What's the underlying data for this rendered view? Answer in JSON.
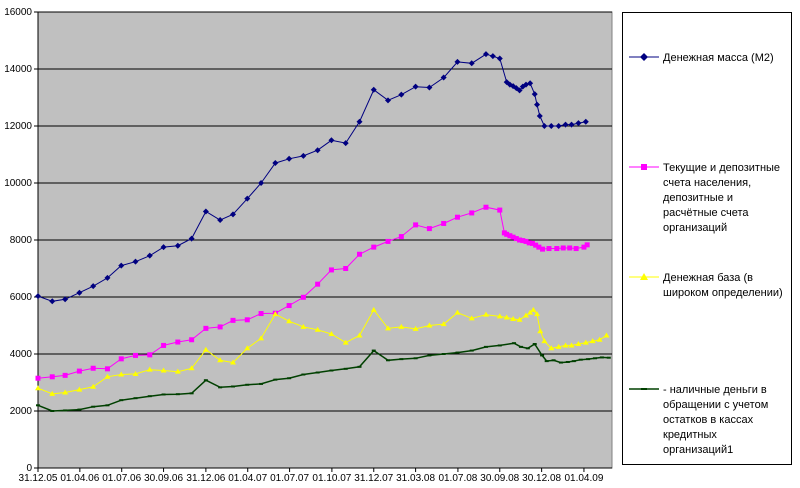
{
  "chart_data": {
    "type": "line",
    "ylim": [
      0,
      16000
    ],
    "yticks": [
      0,
      2000,
      4000,
      6000,
      8000,
      10000,
      12000,
      14000,
      16000
    ],
    "ytick_labels": [
      "0",
      "2000",
      "4000",
      "6000",
      "8000",
      "10000",
      "12000",
      "14000",
      "16000"
    ],
    "xlim": [
      "2005-12-31",
      "2009-06-01"
    ],
    "xtick_labels": [
      "31.12.05",
      "01.04.06",
      "01.07.06",
      "30.09.06",
      "31.12.06",
      "01.04.07",
      "01.07.07",
      "01.10.07",
      "31.12.07",
      "31.03.08",
      "01.07.08",
      "30.09.08",
      "30.12.08",
      "01.04.09"
    ],
    "xtick_dates": [
      "2005-12-31",
      "2006-04-01",
      "2006-07-01",
      "2006-09-30",
      "2006-12-31",
      "2007-04-01",
      "2007-07-01",
      "2007-10-01",
      "2007-12-31",
      "2008-03-31",
      "2008-07-01",
      "2008-09-30",
      "2008-12-30",
      "2009-04-01"
    ],
    "grid": "horizontal",
    "plot_background": "#c0c0c0",
    "legend_position": "right",
    "series": [
      {
        "name": "Денежная масса (М2)",
        "color": "#000080",
        "marker": "diamond",
        "points": [
          [
            "2005-12-31",
            6030
          ],
          [
            "2006-01-31",
            5850
          ],
          [
            "2006-02-28",
            5920
          ],
          [
            "2006-03-31",
            6150
          ],
          [
            "2006-04-30",
            6380
          ],
          [
            "2006-05-31",
            6670
          ],
          [
            "2006-06-30",
            7100
          ],
          [
            "2006-07-31",
            7240
          ],
          [
            "2006-08-31",
            7450
          ],
          [
            "2006-09-30",
            7750
          ],
          [
            "2006-10-31",
            7800
          ],
          [
            "2006-11-30",
            8050
          ],
          [
            "2006-12-31",
            9000
          ],
          [
            "2007-01-31",
            8700
          ],
          [
            "2007-02-28",
            8900
          ],
          [
            "2007-03-31",
            9450
          ],
          [
            "2007-04-30",
            10000
          ],
          [
            "2007-05-31",
            10700
          ],
          [
            "2007-06-30",
            10850
          ],
          [
            "2007-07-31",
            10950
          ],
          [
            "2007-08-31",
            11150
          ],
          [
            "2007-09-30",
            11500
          ],
          [
            "2007-10-31",
            11400
          ],
          [
            "2007-11-30",
            12150
          ],
          [
            "2007-12-31",
            13270
          ],
          [
            "2008-01-31",
            12900
          ],
          [
            "2008-02-29",
            13100
          ],
          [
            "2008-03-31",
            13380
          ],
          [
            "2008-04-30",
            13350
          ],
          [
            "2008-05-31",
            13700
          ],
          [
            "2008-06-30",
            14250
          ],
          [
            "2008-07-31",
            14200
          ],
          [
            "2008-08-31",
            14520
          ],
          [
            "2008-09-15",
            14450
          ],
          [
            "2008-09-30",
            14370
          ],
          [
            "2008-10-15",
            13540
          ],
          [
            "2008-10-22",
            13450
          ],
          [
            "2008-10-29",
            13400
          ],
          [
            "2008-11-05",
            13330
          ],
          [
            "2008-11-12",
            13250
          ],
          [
            "2008-11-19",
            13380
          ],
          [
            "2008-11-26",
            13450
          ],
          [
            "2008-12-05",
            13500
          ],
          [
            "2008-12-15",
            13120
          ],
          [
            "2008-12-20",
            12750
          ],
          [
            "2008-12-26",
            12350
          ],
          [
            "2009-01-05",
            12000
          ],
          [
            "2009-01-20",
            12000
          ],
          [
            "2009-02-05",
            12000
          ],
          [
            "2009-02-20",
            12050
          ],
          [
            "2009-03-05",
            12050
          ],
          [
            "2009-03-20",
            12100
          ],
          [
            "2009-04-05",
            12150
          ]
        ]
      },
      {
        "name": "Текущие и депозитные счета населения, депозитные и расчётные счета организаций",
        "color": "#ff00ff",
        "marker": "square",
        "points": [
          [
            "2005-12-31",
            3150
          ],
          [
            "2006-01-31",
            3200
          ],
          [
            "2006-02-28",
            3250
          ],
          [
            "2006-03-31",
            3400
          ],
          [
            "2006-04-30",
            3500
          ],
          [
            "2006-05-31",
            3480
          ],
          [
            "2006-06-30",
            3830
          ],
          [
            "2006-07-31",
            3950
          ],
          [
            "2006-08-31",
            3970
          ],
          [
            "2006-09-30",
            4300
          ],
          [
            "2006-10-31",
            4420
          ],
          [
            "2006-11-30",
            4500
          ],
          [
            "2006-12-31",
            4900
          ],
          [
            "2007-01-31",
            4950
          ],
          [
            "2007-02-28",
            5180
          ],
          [
            "2007-03-31",
            5200
          ],
          [
            "2007-04-30",
            5420
          ],
          [
            "2007-05-31",
            5430
          ],
          [
            "2007-06-30",
            5700
          ],
          [
            "2007-07-31",
            5990
          ],
          [
            "2007-08-31",
            6450
          ],
          [
            "2007-09-30",
            6950
          ],
          [
            "2007-10-31",
            7000
          ],
          [
            "2007-11-30",
            7500
          ],
          [
            "2007-12-31",
            7750
          ],
          [
            "2008-01-31",
            7950
          ],
          [
            "2008-02-29",
            8120
          ],
          [
            "2008-03-31",
            8530
          ],
          [
            "2008-04-30",
            8400
          ],
          [
            "2008-05-31",
            8580
          ],
          [
            "2008-06-30",
            8800
          ],
          [
            "2008-07-31",
            8950
          ],
          [
            "2008-08-31",
            9150
          ],
          [
            "2008-09-30",
            9050
          ],
          [
            "2008-10-10",
            8250
          ],
          [
            "2008-10-15",
            8200
          ],
          [
            "2008-10-22",
            8150
          ],
          [
            "2008-10-29",
            8100
          ],
          [
            "2008-11-05",
            8050
          ],
          [
            "2008-11-12",
            8000
          ],
          [
            "2008-11-19",
            7980
          ],
          [
            "2008-11-26",
            7950
          ],
          [
            "2008-12-03",
            7900
          ],
          [
            "2008-12-10",
            7880
          ],
          [
            "2008-12-17",
            7820
          ],
          [
            "2008-12-24",
            7750
          ],
          [
            "2009-01-01",
            7680
          ],
          [
            "2009-01-15",
            7700
          ],
          [
            "2009-02-01",
            7700
          ],
          [
            "2009-02-15",
            7720
          ],
          [
            "2009-03-01",
            7720
          ],
          [
            "2009-03-15",
            7700
          ],
          [
            "2009-04-01",
            7750
          ],
          [
            "2009-04-08",
            7830
          ]
        ]
      },
      {
        "name": "Денежная база (в широком определении)",
        "color": "#ffff00",
        "marker": "triangle",
        "points": [
          [
            "2005-12-31",
            2800
          ],
          [
            "2006-01-31",
            2600
          ],
          [
            "2006-02-28",
            2650
          ],
          [
            "2006-03-31",
            2750
          ],
          [
            "2006-04-30",
            2850
          ],
          [
            "2006-05-31",
            3200
          ],
          [
            "2006-06-30",
            3280
          ],
          [
            "2006-07-31",
            3300
          ],
          [
            "2006-08-31",
            3450
          ],
          [
            "2006-09-30",
            3420
          ],
          [
            "2006-10-31",
            3380
          ],
          [
            "2006-11-30",
            3500
          ],
          [
            "2006-12-31",
            4150
          ],
          [
            "2007-01-31",
            3780
          ],
          [
            "2007-02-28",
            3700
          ],
          [
            "2007-03-31",
            4200
          ],
          [
            "2007-04-30",
            4550
          ],
          [
            "2007-05-31",
            5400
          ],
          [
            "2007-06-30",
            5150
          ],
          [
            "2007-07-31",
            4950
          ],
          [
            "2007-08-31",
            4850
          ],
          [
            "2007-09-30",
            4700
          ],
          [
            "2007-10-31",
            4400
          ],
          [
            "2007-11-30",
            4650
          ],
          [
            "2007-12-31",
            5550
          ],
          [
            "2008-01-31",
            4900
          ],
          [
            "2008-02-29",
            4950
          ],
          [
            "2008-03-31",
            4880
          ],
          [
            "2008-04-30",
            5000
          ],
          [
            "2008-05-31",
            5050
          ],
          [
            "2008-06-30",
            5450
          ],
          [
            "2008-07-31",
            5250
          ],
          [
            "2008-08-31",
            5380
          ],
          [
            "2008-09-30",
            5320
          ],
          [
            "2008-10-15",
            5280
          ],
          [
            "2008-10-29",
            5230
          ],
          [
            "2008-11-12",
            5200
          ],
          [
            "2008-11-26",
            5350
          ],
          [
            "2008-12-05",
            5450
          ],
          [
            "2008-12-12",
            5550
          ],
          [
            "2008-12-20",
            5400
          ],
          [
            "2008-12-27",
            4800
          ],
          [
            "2009-01-05",
            4450
          ],
          [
            "2009-01-20",
            4200
          ],
          [
            "2009-02-05",
            4250
          ],
          [
            "2009-02-20",
            4300
          ],
          [
            "2009-03-05",
            4300
          ],
          [
            "2009-03-20",
            4350
          ],
          [
            "2009-04-05",
            4400
          ],
          [
            "2009-04-20",
            4450
          ],
          [
            "2009-05-05",
            4500
          ],
          [
            "2009-05-20",
            4650
          ]
        ]
      },
      {
        "name": " -  наличные деньги в обращении с учетом остатков в кассах кредитных организаций1",
        "color": "#004000",
        "marker": "dash",
        "points": [
          [
            "2005-12-31",
            2200
          ],
          [
            "2006-01-31",
            2000
          ],
          [
            "2006-02-28",
            2020
          ],
          [
            "2006-03-31",
            2050
          ],
          [
            "2006-04-30",
            2150
          ],
          [
            "2006-05-31",
            2200
          ],
          [
            "2006-06-30",
            2380
          ],
          [
            "2006-07-31",
            2450
          ],
          [
            "2006-08-31",
            2520
          ],
          [
            "2006-09-30",
            2580
          ],
          [
            "2006-10-31",
            2590
          ],
          [
            "2006-11-30",
            2620
          ],
          [
            "2006-12-31",
            3080
          ],
          [
            "2007-01-31",
            2830
          ],
          [
            "2007-02-28",
            2860
          ],
          [
            "2007-03-31",
            2920
          ],
          [
            "2007-04-30",
            2950
          ],
          [
            "2007-05-31",
            3100
          ],
          [
            "2007-06-30",
            3150
          ],
          [
            "2007-07-31",
            3280
          ],
          [
            "2007-08-31",
            3350
          ],
          [
            "2007-09-30",
            3420
          ],
          [
            "2007-10-31",
            3480
          ],
          [
            "2007-11-30",
            3550
          ],
          [
            "2007-12-31",
            4120
          ],
          [
            "2008-01-31",
            3780
          ],
          [
            "2008-02-29",
            3820
          ],
          [
            "2008-03-31",
            3850
          ],
          [
            "2008-04-30",
            3950
          ],
          [
            "2008-05-31",
            4000
          ],
          [
            "2008-06-30",
            4050
          ],
          [
            "2008-07-31",
            4120
          ],
          [
            "2008-08-31",
            4250
          ],
          [
            "2008-09-30",
            4300
          ],
          [
            "2008-10-31",
            4380
          ],
          [
            "2008-11-15",
            4250
          ],
          [
            "2008-11-30",
            4200
          ],
          [
            "2008-12-15",
            4350
          ],
          [
            "2008-12-31",
            3950
          ],
          [
            "2009-01-10",
            3750
          ],
          [
            "2009-01-25",
            3780
          ],
          [
            "2009-02-10",
            3700
          ],
          [
            "2009-02-25",
            3720
          ],
          [
            "2009-03-10",
            3750
          ],
          [
            "2009-03-25",
            3800
          ],
          [
            "2009-04-10",
            3820
          ],
          [
            "2009-04-25",
            3850
          ],
          [
            "2009-05-10",
            3880
          ],
          [
            "2009-05-25",
            3870
          ]
        ]
      }
    ]
  },
  "legend": {
    "items": [
      {
        "label": "Денежная масса (М2)"
      },
      {
        "label": "Текущие и депозитные счета населения, депозитные и расчётные счета организаций"
      },
      {
        "label": "Денежная база (в широком определении)"
      },
      {
        "label": " -  наличные деньги в обращении с учетом остатков в кассах кредитных организаций1"
      }
    ]
  }
}
